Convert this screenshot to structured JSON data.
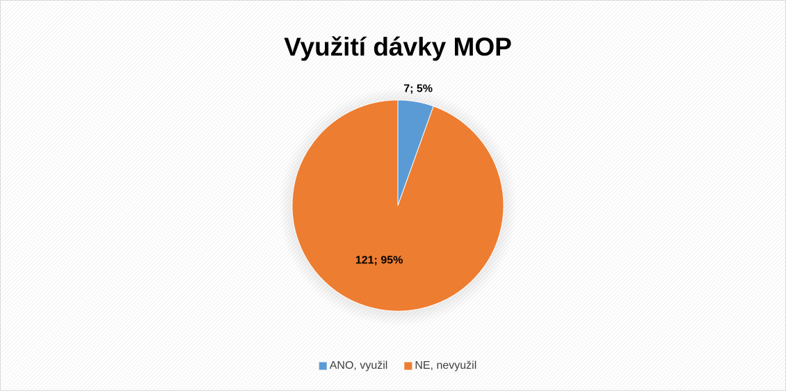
{
  "chart_data": {
    "type": "pie",
    "title": "Využití dávky MOP",
    "categories": [
      "ANO, využil",
      "NE, nevyužil"
    ],
    "values": [
      7,
      121
    ],
    "value_labels": [
      "7; 5%",
      "121; 95%"
    ],
    "colors": [
      "#5b9bd5",
      "#ed7d31"
    ],
    "legend": "bottom"
  }
}
